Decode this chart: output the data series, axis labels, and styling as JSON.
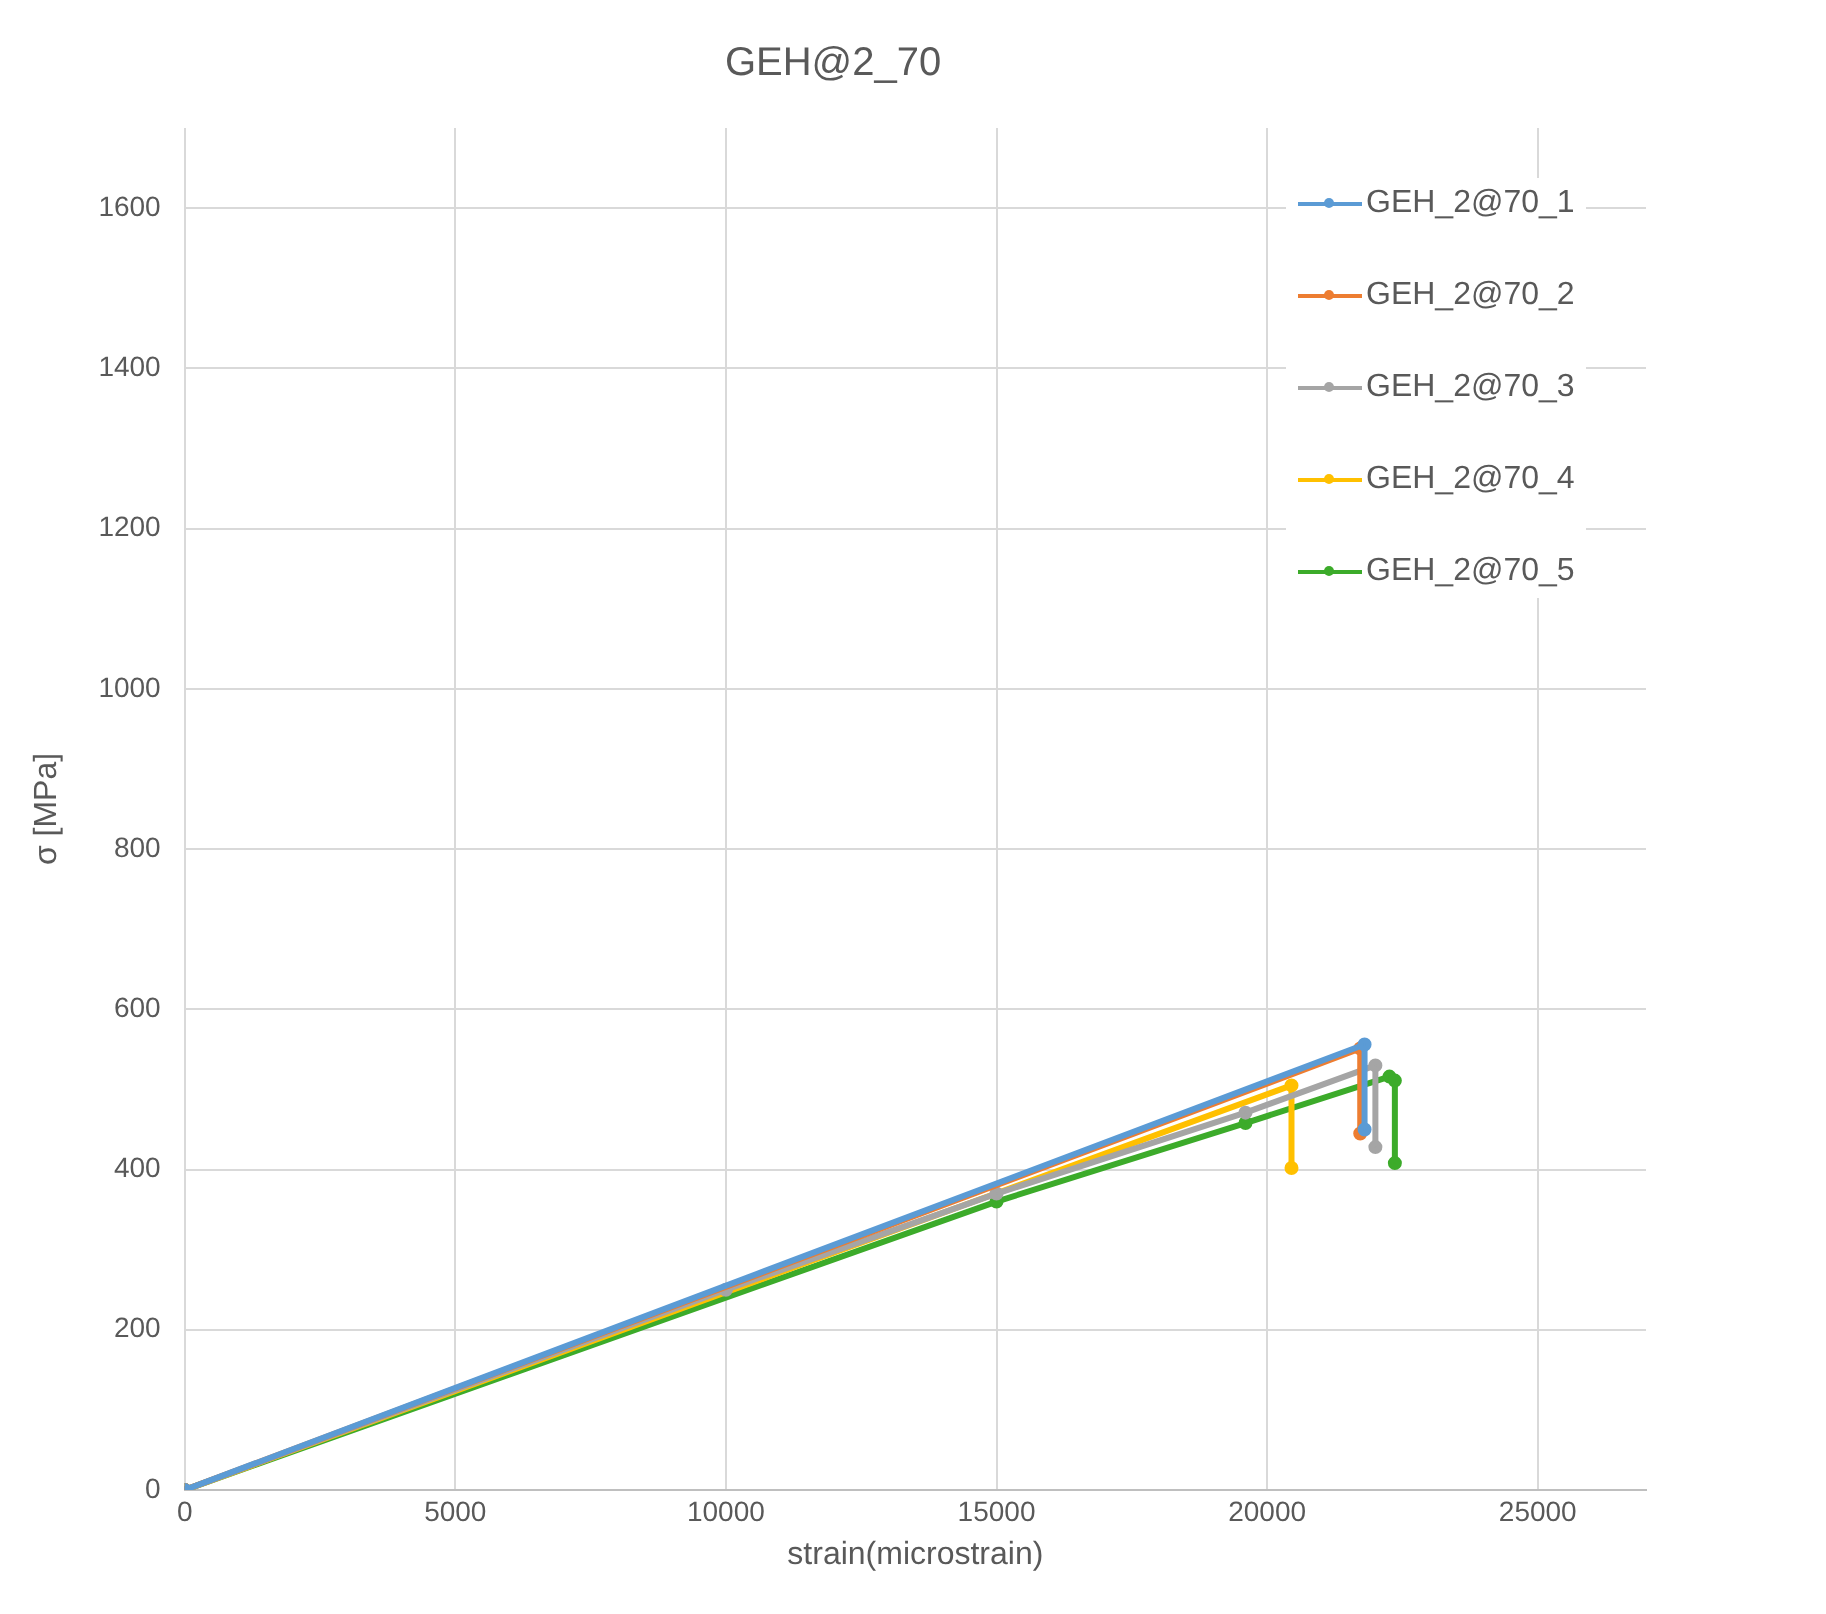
{
  "chart_data": {
    "type": "line",
    "title": "GEH@2_70",
    "xlabel": "strain(microstrain)",
    "ylabel": "σ [MPa]",
    "xlim": [
      0,
      27000
    ],
    "xticks": [
      0,
      5000,
      10000,
      15000,
      20000,
      25000
    ],
    "ylim": [
      0,
      1700
    ],
    "yticks": [
      0,
      200,
      400,
      600,
      800,
      1000,
      1200,
      1400,
      1600
    ],
    "grid": true,
    "legend": "top right",
    "marker": "circle",
    "line_style": "solid",
    "series": [
      {
        "name": "GEH_2@70_1",
        "color": "#5b9bd5",
        "x": [
          0,
          21800,
          21800
        ],
        "values": [
          0,
          556,
          450
        ]
      },
      {
        "name": "GEH_2@70_2",
        "color": "#ed7d31",
        "x": [
          0,
          21720,
          21720
        ],
        "values": [
          0,
          551,
          445
        ]
      },
      {
        "name": "GEH_2@70_3",
        "color": "#a5a5a5",
        "x": [
          0,
          10000,
          15000,
          19600,
          22000,
          22000
        ],
        "values": [
          0,
          250,
          370,
          471,
          530,
          428
        ]
      },
      {
        "name": "GEH_2@70_4",
        "color": "#ffc000",
        "x": [
          0,
          20450,
          20450
        ],
        "values": [
          0,
          505,
          402
        ]
      },
      {
        "name": "GEH_2@70_5",
        "color": "#3cab2a",
        "x": [
          0,
          15000,
          19600,
          22260,
          22360,
          22360
        ],
        "values": [
          0,
          360,
          458,
          516,
          511,
          408
        ]
      }
    ]
  }
}
